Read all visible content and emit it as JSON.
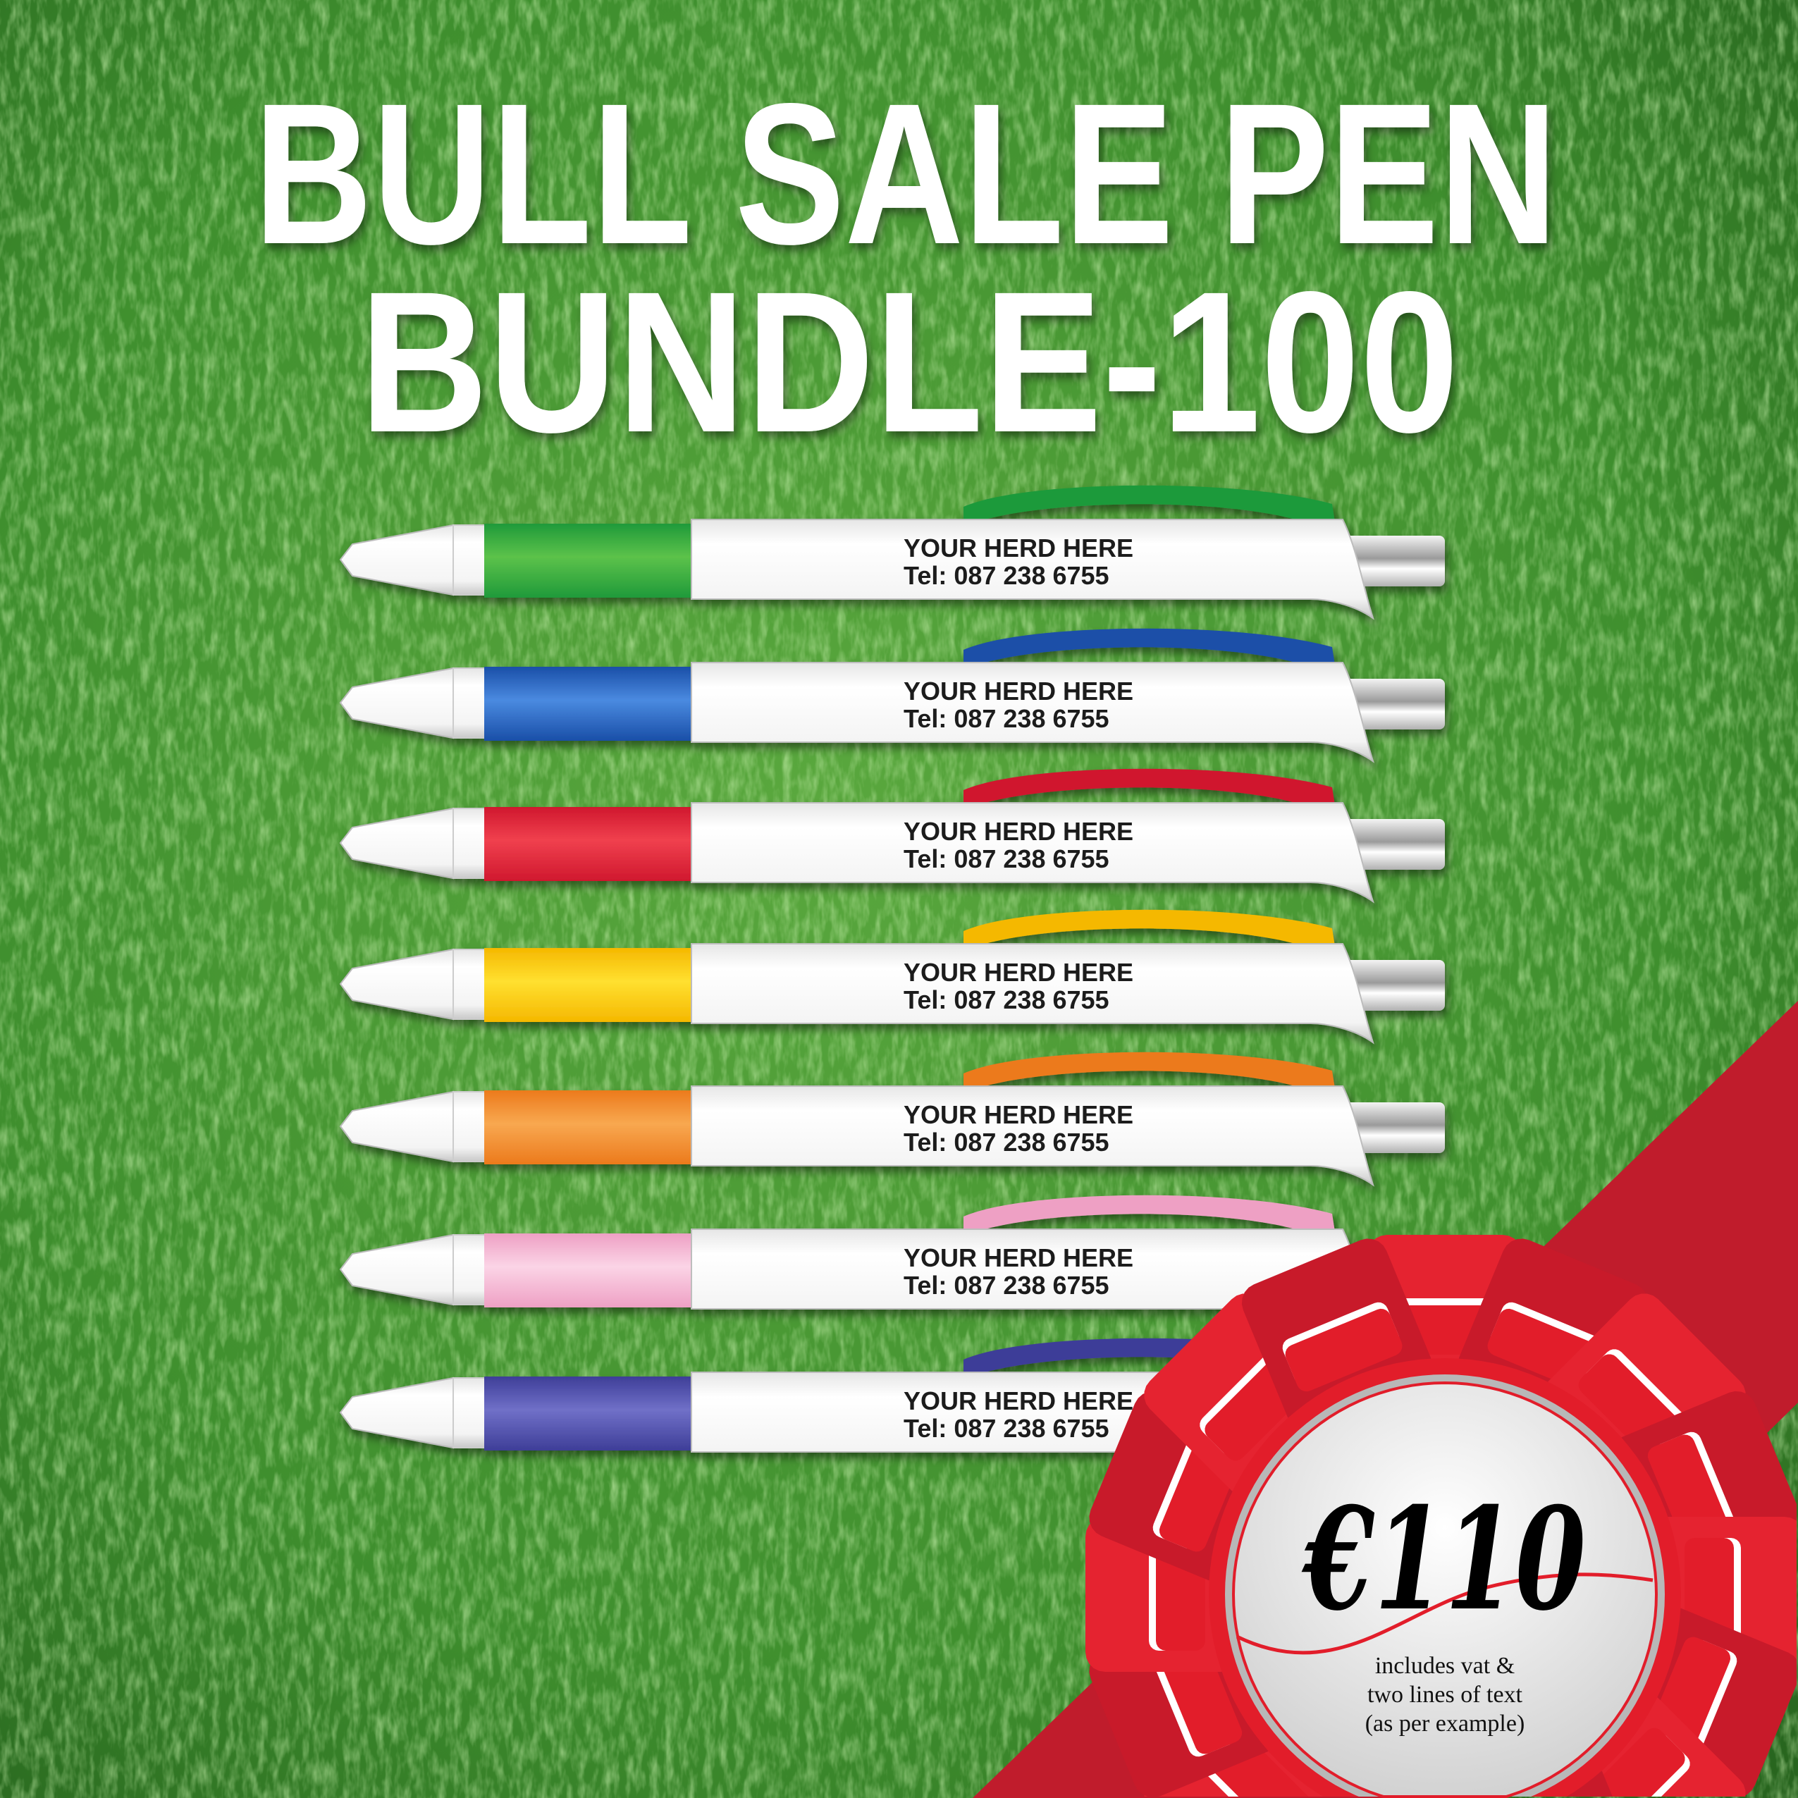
{
  "title": {
    "line1": "BULL SALE PEN",
    "line2": "BUNDLE-100"
  },
  "pens": [
    {
      "color": "#1f9a3a",
      "light": "#5cc24a",
      "line1": "YOUR HERD HERE",
      "line2": "Tel: 087 238 6755"
    },
    {
      "color": "#1a4fa8",
      "light": "#4a8ae0",
      "line1": "YOUR HERD HERE",
      "line2": "Tel: 087 238 6755"
    },
    {
      "color": "#d0182e",
      "light": "#f0404e",
      "line1": "YOUR HERD HERE",
      "line2": "Tel: 087 238 6755"
    },
    {
      "color": "#f5b800",
      "light": "#ffe030",
      "line1": "YOUR HERD HERE",
      "line2": "Tel: 087 238 6755"
    },
    {
      "color": "#ec7a1c",
      "light": "#f8a850",
      "line1": "YOUR HERD HERE",
      "line2": "Tel: 087 238 6755"
    },
    {
      "color": "#eea0c4",
      "light": "#fbd4e6",
      "line1": "YOUR HERD HERE",
      "line2": "Tel: 087 238 6755"
    },
    {
      "color": "#3e3e98",
      "light": "#7070c8",
      "line1": "YOUR HERD HERE",
      "line2": "Tel: 087 238 6755"
    }
  ],
  "badge": {
    "price": "€110",
    "note_line1": "includes vat &",
    "note_line2": "two lines of text",
    "note_line3": "(as per example)",
    "ribbon_color": "#c01c2c",
    "rosette_color": "#e21d2a"
  },
  "background": {
    "grass_color": "#3f8f2e"
  }
}
